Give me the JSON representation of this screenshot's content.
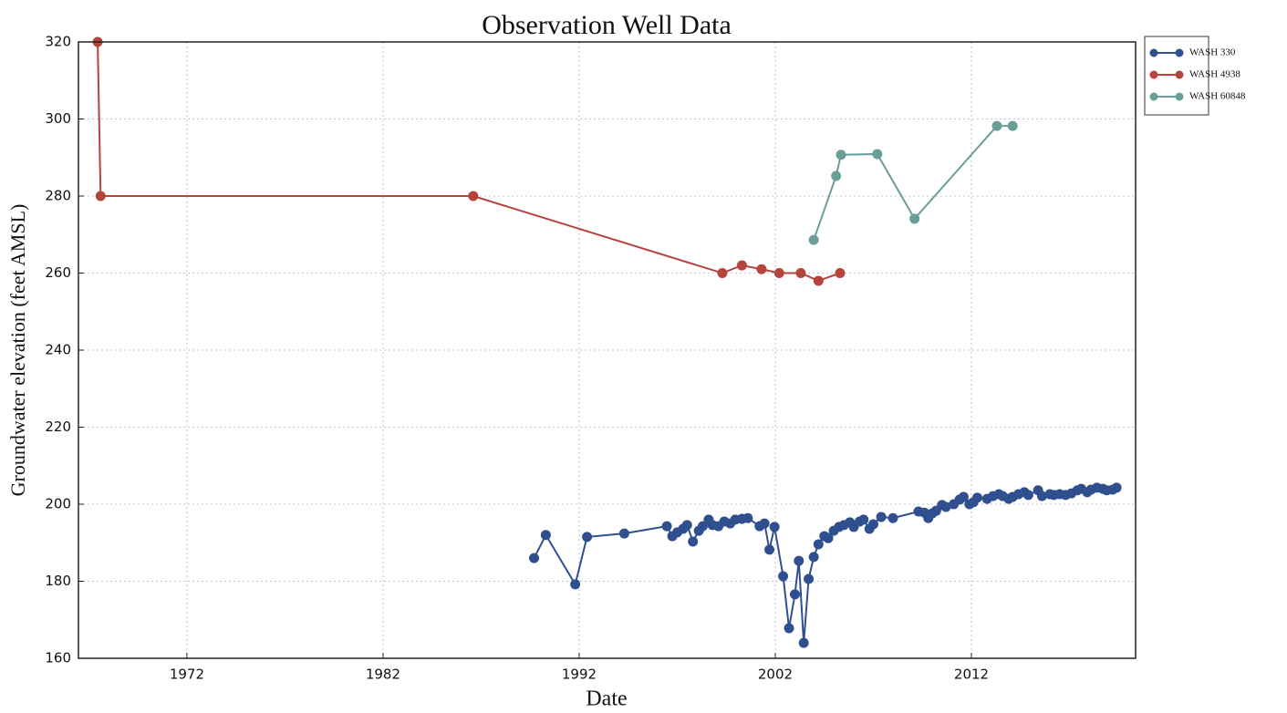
{
  "chart_data": {
    "type": "line",
    "title": "Observation Well Data",
    "x_label": "Date",
    "y_label": "Groundwater elevation (feet AMSL)",
    "xlim": [
      1966.47,
      2020.37
    ],
    "xticks": [
      1972,
      1982,
      1992,
      2002,
      2012
    ],
    "ylim": [
      160,
      320
    ],
    "yticks": [
      160,
      180,
      200,
      220,
      240,
      260,
      280,
      300,
      320
    ],
    "grid": true,
    "legend": "outside upper right",
    "series": [
      {
        "name": "WASH 330",
        "color": "#2f4f8f",
        "x": [
          1989.7,
          1990.3,
          1991.8,
          1992.4,
          1994.3,
          1996.47,
          1996.75,
          1997.0,
          1997.3,
          1997.5,
          1997.8,
          1998.1,
          1998.3,
          1998.6,
          1998.8,
          1999.1,
          1999.4,
          1999.7,
          1999.96,
          2000.3,
          2000.6,
          2001.2,
          2001.45,
          2001.7,
          2001.96,
          2002.4,
          2002.7,
          2003.0,
          2003.2,
          2003.45,
          2003.7,
          2003.96,
          2004.2,
          2004.5,
          2004.7,
          2004.98,
          2005.25,
          2005.5,
          2005.8,
          2006.0,
          2006.3,
          2006.5,
          2006.8,
          2007.0,
          2007.4,
          2008.0,
          2009.3,
          2009.6,
          2009.8,
          2010.0,
          2010.2,
          2010.5,
          2010.7,
          2011.1,
          2011.4,
          2011.6,
          2011.9,
          2012.1,
          2012.3,
          2012.8,
          2013.1,
          2013.4,
          2013.6,
          2013.9,
          2014.1,
          2014.4,
          2014.7,
          2014.9,
          2015.4,
          2015.6,
          2016.0,
          2016.2,
          2016.5,
          2016.8,
          2017.1,
          2017.4,
          2017.6,
          2017.9,
          2018.1,
          2018.4,
          2018.7,
          2018.9,
          2019.2,
          2019.4
        ],
        "values": [
          186.0,
          192.0,
          179.2,
          191.5,
          192.4,
          194.3,
          191.7,
          192.7,
          193.6,
          194.6,
          190.3,
          193.1,
          194.3,
          196.0,
          194.6,
          194.3,
          195.5,
          195.0,
          196.0,
          196.2,
          196.4,
          194.3,
          195.0,
          188.2,
          194.1,
          181.3,
          167.8,
          176.6,
          185.3,
          164.0,
          180.6,
          186.3,
          189.6,
          191.7,
          191.2,
          193.1,
          194.1,
          194.6,
          195.3,
          194.1,
          195.5,
          196.0,
          193.6,
          194.8,
          196.7,
          196.4,
          198.1,
          197.8,
          196.4,
          197.6,
          198.3,
          199.8,
          199.3,
          200.0,
          201.2,
          201.9,
          200.0,
          200.5,
          201.7,
          201.4,
          202.1,
          202.6,
          202.1,
          201.4,
          201.9,
          202.6,
          203.1,
          202.4,
          203.6,
          202.1,
          202.6,
          202.4,
          202.6,
          202.4,
          202.8,
          203.6,
          204.0,
          203.1,
          203.8,
          204.3,
          204.0,
          203.6,
          203.8,
          204.3
        ]
      },
      {
        "name": "WASH 4938",
        "color": "#b5443c",
        "x": [
          1967.45,
          1967.6,
          1986.6,
          1999.3,
          2000.3,
          2001.3,
          2002.2,
          2003.3,
          2004.2,
          2005.3
        ],
        "values": [
          320,
          280,
          280,
          260,
          262,
          261,
          260,
          260,
          258,
          260
        ]
      },
      {
        "name": "WASH 60848",
        "color": "#6a9e98",
        "x": [
          2003.96,
          2005.1,
          2005.35,
          2007.2,
          2009.1,
          2013.3,
          2014.1
        ],
        "values": [
          268.6,
          285.2,
          290.7,
          290.9,
          274.1,
          298.2,
          298.2
        ]
      }
    ]
  }
}
